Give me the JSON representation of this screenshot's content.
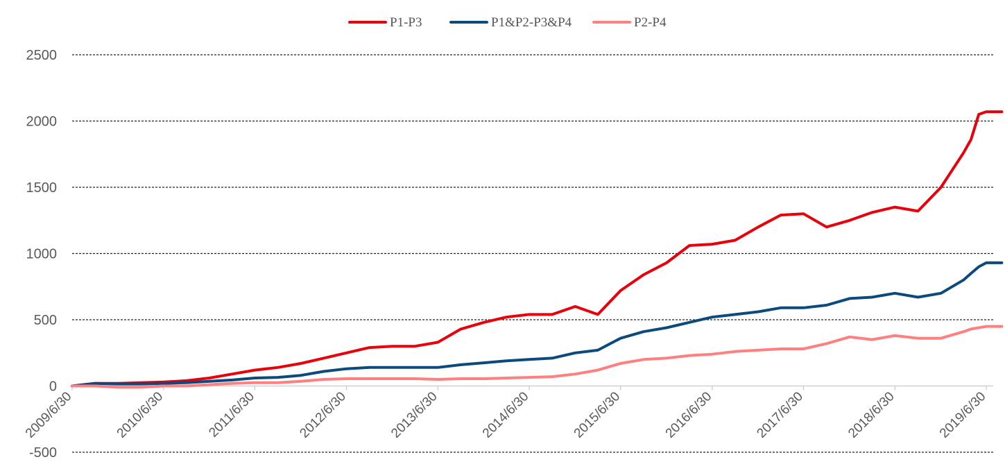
{
  "chart_data": {
    "type": "line",
    "title": "",
    "xlabel": "",
    "ylabel": "",
    "ylim": [
      -500,
      2500
    ],
    "yticks": [
      "2500",
      "2000",
      "1500",
      "1000",
      "500",
      "0",
      "-500"
    ],
    "ytick_values": [
      2500,
      2000,
      1500,
      1000,
      500,
      0,
      -500
    ],
    "x_range": [
      "2009/6/30",
      "2019/8/31"
    ],
    "x_ticks": [
      "2009/6/30",
      "2010/6/30",
      "2011/6/30",
      "2012/6/30",
      "2013/6/30",
      "2014/6/30",
      "2015/6/30",
      "2016/6/30",
      "2017/6/30",
      "2018/6/30",
      "2019/6/30"
    ],
    "grid": "horizontal dashed",
    "legend_position": "top",
    "series": [
      {
        "name": "P1-P3",
        "color": "#e8000b",
        "points": [
          [
            "2009/6/30",
            0
          ],
          [
            "2009/9/30",
            20
          ],
          [
            "2009/12/31",
            20
          ],
          [
            "2010/3/31",
            25
          ],
          [
            "2010/6/30",
            30
          ],
          [
            "2010/9/30",
            40
          ],
          [
            "2010/12/31",
            60
          ],
          [
            "2011/3/31",
            90
          ],
          [
            "2011/6/30",
            120
          ],
          [
            "2011/9/30",
            140
          ],
          [
            "2011/12/31",
            170
          ],
          [
            "2012/3/31",
            210
          ],
          [
            "2012/6/30",
            250
          ],
          [
            "2012/9/30",
            290
          ],
          [
            "2012/12/31",
            300
          ],
          [
            "2013/3/31",
            300
          ],
          [
            "2013/6/30",
            330
          ],
          [
            "2013/9/30",
            430
          ],
          [
            "2013/12/31",
            480
          ],
          [
            "2014/3/31",
            520
          ],
          [
            "2014/6/30",
            540
          ],
          [
            "2014/9/30",
            540
          ],
          [
            "2014/12/31",
            600
          ],
          [
            "2015/3/31",
            540
          ],
          [
            "2015/6/30",
            720
          ],
          [
            "2015/9/30",
            840
          ],
          [
            "2015/12/31",
            930
          ],
          [
            "2016/3/31",
            1060
          ],
          [
            "2016/6/30",
            1070
          ],
          [
            "2016/9/30",
            1100
          ],
          [
            "2016/12/31",
            1200
          ],
          [
            "2017/3/31",
            1290
          ],
          [
            "2017/6/30",
            1300
          ],
          [
            "2017/9/30",
            1200
          ],
          [
            "2017/12/31",
            1250
          ],
          [
            "2018/3/31",
            1310
          ],
          [
            "2018/6/30",
            1350
          ],
          [
            "2018/9/30",
            1320
          ],
          [
            "2018/12/31",
            1500
          ],
          [
            "2019/3/31",
            1760
          ],
          [
            "2019/4/30",
            1860
          ],
          [
            "2019/5/31",
            2050
          ],
          [
            "2019/6/30",
            2070
          ],
          [
            "2019/8/31",
            2070
          ]
        ]
      },
      {
        "name": "P1&P2-P3&P4",
        "color": "#0c4a7d",
        "points": [
          [
            "2009/6/30",
            0
          ],
          [
            "2009/9/30",
            20
          ],
          [
            "2009/12/31",
            15
          ],
          [
            "2010/3/31",
            15
          ],
          [
            "2010/6/30",
            20
          ],
          [
            "2010/9/30",
            25
          ],
          [
            "2010/12/31",
            35
          ],
          [
            "2011/3/31",
            45
          ],
          [
            "2011/6/30",
            60
          ],
          [
            "2011/9/30",
            65
          ],
          [
            "2011/12/31",
            80
          ],
          [
            "2012/3/31",
            110
          ],
          [
            "2012/6/30",
            130
          ],
          [
            "2012/9/30",
            140
          ],
          [
            "2012/12/31",
            140
          ],
          [
            "2013/3/31",
            140
          ],
          [
            "2013/6/30",
            140
          ],
          [
            "2013/9/30",
            160
          ],
          [
            "2013/12/31",
            175
          ],
          [
            "2014/3/31",
            190
          ],
          [
            "2014/6/30",
            200
          ],
          [
            "2014/9/30",
            210
          ],
          [
            "2014/12/31",
            250
          ],
          [
            "2015/3/31",
            270
          ],
          [
            "2015/6/30",
            360
          ],
          [
            "2015/9/30",
            410
          ],
          [
            "2015/12/31",
            440
          ],
          [
            "2016/3/31",
            480
          ],
          [
            "2016/6/30",
            520
          ],
          [
            "2016/9/30",
            540
          ],
          [
            "2016/12/31",
            560
          ],
          [
            "2017/3/31",
            590
          ],
          [
            "2017/6/30",
            590
          ],
          [
            "2017/9/30",
            610
          ],
          [
            "2017/12/31",
            660
          ],
          [
            "2018/3/31",
            670
          ],
          [
            "2018/6/30",
            700
          ],
          [
            "2018/9/30",
            670
          ],
          [
            "2018/12/31",
            700
          ],
          [
            "2019/3/31",
            800
          ],
          [
            "2019/4/30",
            850
          ],
          [
            "2019/5/31",
            900
          ],
          [
            "2019/6/30",
            930
          ],
          [
            "2019/8/31",
            930
          ]
        ]
      },
      {
        "name": "P2-P4",
        "color": "#ff8080",
        "points": [
          [
            "2009/6/30",
            0
          ],
          [
            "2009/9/30",
            0
          ],
          [
            "2009/12/31",
            -10
          ],
          [
            "2010/3/31",
            -10
          ],
          [
            "2010/6/30",
            0
          ],
          [
            "2010/9/30",
            0
          ],
          [
            "2010/12/31",
            10
          ],
          [
            "2011/3/31",
            20
          ],
          [
            "2011/6/30",
            25
          ],
          [
            "2011/9/30",
            25
          ],
          [
            "2011/12/31",
            35
          ],
          [
            "2012/3/31",
            50
          ],
          [
            "2012/6/30",
            55
          ],
          [
            "2012/9/30",
            55
          ],
          [
            "2012/12/31",
            55
          ],
          [
            "2013/3/31",
            55
          ],
          [
            "2013/6/30",
            50
          ],
          [
            "2013/9/30",
            55
          ],
          [
            "2013/12/31",
            55
          ],
          [
            "2014/3/31",
            60
          ],
          [
            "2014/6/30",
            65
          ],
          [
            "2014/9/30",
            70
          ],
          [
            "2014/12/31",
            90
          ],
          [
            "2015/3/31",
            120
          ],
          [
            "2015/6/30",
            170
          ],
          [
            "2015/9/30",
            200
          ],
          [
            "2015/12/31",
            210
          ],
          [
            "2016/3/31",
            230
          ],
          [
            "2016/6/30",
            240
          ],
          [
            "2016/9/30",
            260
          ],
          [
            "2016/12/31",
            270
          ],
          [
            "2017/3/31",
            280
          ],
          [
            "2017/6/30",
            280
          ],
          [
            "2017/9/30",
            320
          ],
          [
            "2017/12/31",
            370
          ],
          [
            "2018/3/31",
            350
          ],
          [
            "2018/6/30",
            380
          ],
          [
            "2018/9/30",
            360
          ],
          [
            "2018/12/31",
            360
          ],
          [
            "2019/3/31",
            410
          ],
          [
            "2019/4/30",
            430
          ],
          [
            "2019/5/31",
            440
          ],
          [
            "2019/6/30",
            450
          ],
          [
            "2019/8/31",
            450
          ]
        ]
      }
    ]
  }
}
